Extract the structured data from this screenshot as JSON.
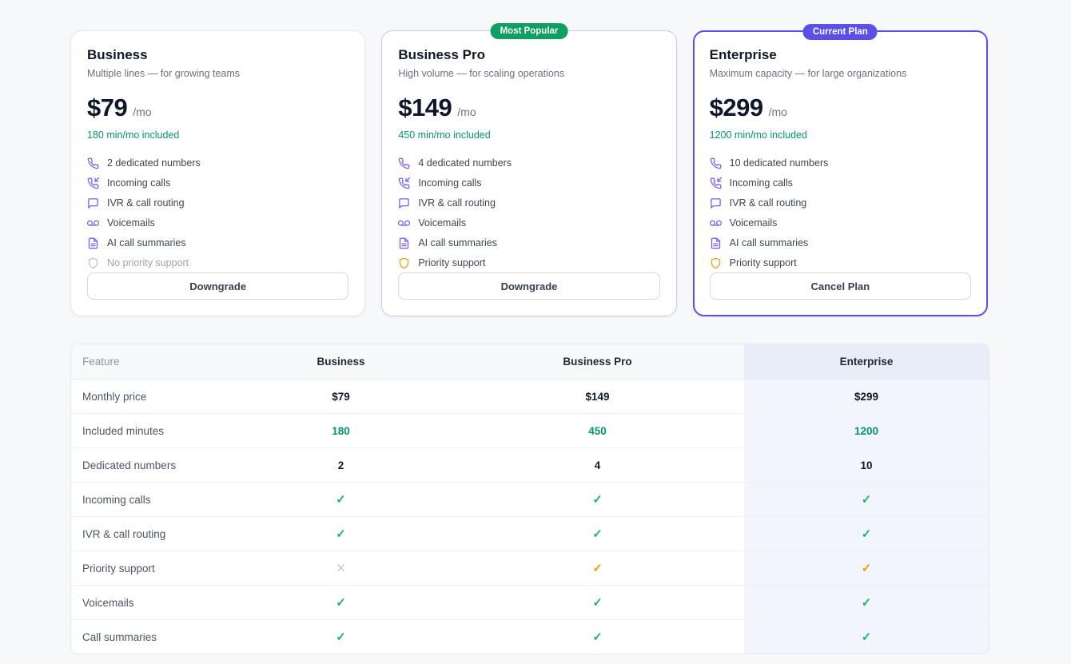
{
  "colors": {
    "page_background": "#F7F8FA",
    "accent_purple": "#5B4FE8",
    "icon_purple": "#7A5AF8",
    "badge_green": "#0E9F63",
    "success_green": "#059669",
    "check_green": "#1CB56E",
    "warning_orange": "#F59E0B",
    "muted_gray": "#9CA3AF",
    "enterprise_column_bg": "#F3F5FC"
  },
  "glyphs": {
    "check": "✓",
    "cross": "✕"
  },
  "plans": [
    {
      "name": "Business",
      "tagline": "Multiple lines — for growing teams",
      "price": "$79",
      "period": "/mo",
      "minutes_note": "180 min/mo included",
      "badge": "",
      "badge_style": "none",
      "highlight": "none",
      "button_label": "Downgrade",
      "features": [
        {
          "icon": "phone-icon",
          "label": "2 dedicated numbers",
          "tone": "purple"
        },
        {
          "icon": "phone-incoming-icon",
          "label": "Incoming calls",
          "tone": "purple"
        },
        {
          "icon": "message-square-icon",
          "label": "IVR & call routing",
          "tone": "purple"
        },
        {
          "icon": "voicemail-icon",
          "label": "Voicemails",
          "tone": "purple"
        },
        {
          "icon": "file-text-icon",
          "label": "AI call summaries",
          "tone": "purple"
        },
        {
          "icon": "shield-icon",
          "label": "No priority support",
          "tone": "muted"
        }
      ]
    },
    {
      "name": "Business Pro",
      "tagline": "High volume — for scaling operations",
      "price": "$149",
      "period": "/mo",
      "minutes_note": "450 min/mo included",
      "badge": "Most Popular",
      "badge_style": "green",
      "highlight": "popular",
      "button_label": "Downgrade",
      "features": [
        {
          "icon": "phone-icon",
          "label": "4 dedicated numbers",
          "tone": "purple"
        },
        {
          "icon": "phone-incoming-icon",
          "label": "Incoming calls",
          "tone": "purple"
        },
        {
          "icon": "message-square-icon",
          "label": "IVR & call routing",
          "tone": "purple"
        },
        {
          "icon": "voicemail-icon",
          "label": "Voicemails",
          "tone": "purple"
        },
        {
          "icon": "file-text-icon",
          "label": "AI call summaries",
          "tone": "purple"
        },
        {
          "icon": "shield-icon",
          "label": "Priority support",
          "tone": "orange"
        }
      ]
    },
    {
      "name": "Enterprise",
      "tagline": "Maximum capacity — for large organizations",
      "price": "$299",
      "period": "/mo",
      "minutes_note": "1200 min/mo included",
      "badge": "Current Plan",
      "badge_style": "purple",
      "highlight": "current",
      "button_label": "Cancel Plan",
      "features": [
        {
          "icon": "phone-icon",
          "label": "10 dedicated numbers",
          "tone": "purple"
        },
        {
          "icon": "phone-incoming-icon",
          "label": "Incoming calls",
          "tone": "purple"
        },
        {
          "icon": "message-square-icon",
          "label": "IVR & call routing",
          "tone": "purple"
        },
        {
          "icon": "voicemail-icon",
          "label": "Voicemails",
          "tone": "purple"
        },
        {
          "icon": "file-text-icon",
          "label": "AI call summaries",
          "tone": "purple"
        },
        {
          "icon": "shield-icon",
          "label": "Priority support",
          "tone": "orange"
        }
      ]
    }
  ],
  "comparison": {
    "headers": [
      "Feature",
      "Business",
      "Business Pro",
      "Enterprise"
    ],
    "rows": [
      {
        "feature": "Monthly price",
        "cells": [
          {
            "kind": "bold",
            "text": "$79"
          },
          {
            "kind": "bold",
            "text": "$149"
          },
          {
            "kind": "bold",
            "text": "$299"
          }
        ]
      },
      {
        "feature": "Included minutes",
        "cells": [
          {
            "kind": "green",
            "text": "180"
          },
          {
            "kind": "green",
            "text": "450"
          },
          {
            "kind": "green",
            "text": "1200"
          }
        ]
      },
      {
        "feature": "Dedicated numbers",
        "cells": [
          {
            "kind": "bold",
            "text": "2"
          },
          {
            "kind": "bold",
            "text": "4"
          },
          {
            "kind": "bold",
            "text": "10"
          }
        ]
      },
      {
        "feature": "Incoming calls",
        "cells": [
          {
            "kind": "check"
          },
          {
            "kind": "check"
          },
          {
            "kind": "check"
          }
        ]
      },
      {
        "feature": "IVR & call routing",
        "cells": [
          {
            "kind": "check"
          },
          {
            "kind": "check"
          },
          {
            "kind": "check"
          }
        ]
      },
      {
        "feature": "Priority support",
        "cells": [
          {
            "kind": "cross"
          },
          {
            "kind": "check-orange"
          },
          {
            "kind": "check-orange"
          }
        ]
      },
      {
        "feature": "Voicemails",
        "cells": [
          {
            "kind": "check"
          },
          {
            "kind": "check"
          },
          {
            "kind": "check"
          }
        ]
      },
      {
        "feature": "Call summaries",
        "cells": [
          {
            "kind": "check"
          },
          {
            "kind": "check"
          },
          {
            "kind": "check"
          }
        ]
      }
    ]
  }
}
